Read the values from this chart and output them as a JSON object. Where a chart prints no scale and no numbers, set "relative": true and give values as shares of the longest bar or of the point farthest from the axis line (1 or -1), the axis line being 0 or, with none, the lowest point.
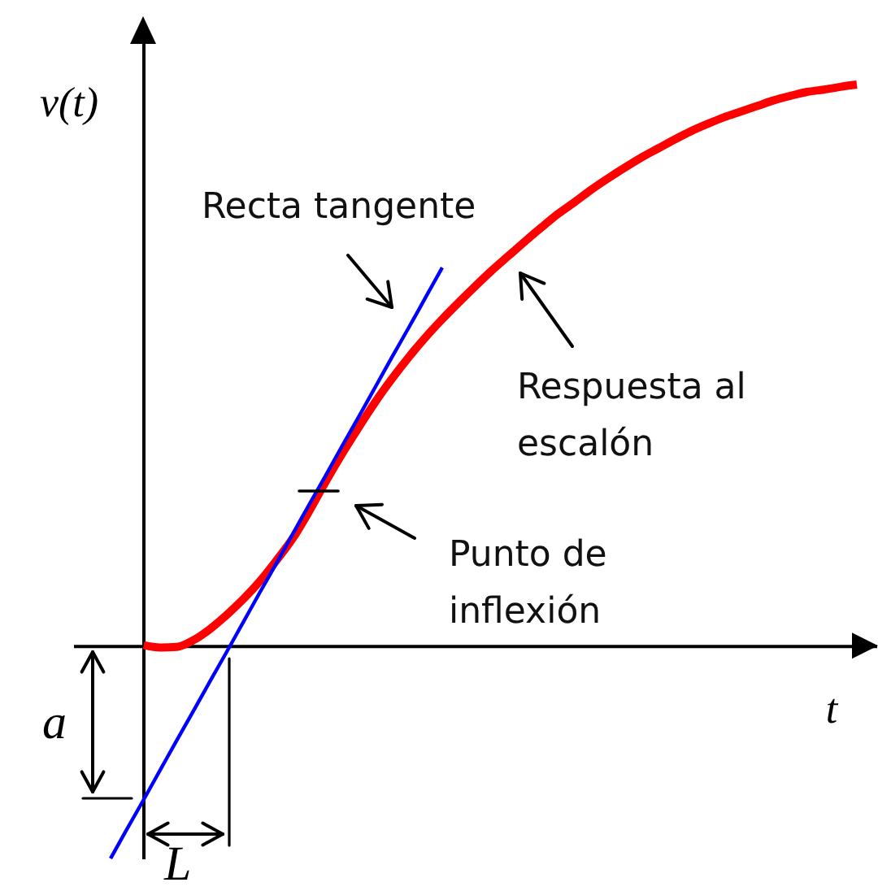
{
  "chart_data": {
    "type": "line",
    "relative": true,
    "xlabel": "t",
    "ylabel": "v(t)",
    "categories": [
      null,
      null,
      null,
      null,
      null,
      null,
      null,
      null,
      null,
      null,
      null,
      null,
      null,
      null,
      null,
      null,
      null,
      null,
      null,
      null,
      null,
      null,
      null,
      null,
      null,
      null,
      null,
      null,
      null,
      null,
      null,
      null,
      null,
      null,
      null,
      null,
      null,
      null,
      null,
      null,
      null,
      null,
      null,
      null,
      null,
      null
    ],
    "series": [
      {
        "name": "Respuesta al escalón",
        "color": "#ff0000",
        "values": [
          null,
          null,
          0.001,
          -0.003,
          -0.002,
          0.01,
          0.03,
          0.055,
          0.083,
          0.115,
          0.152,
          0.192,
          0.241,
          0.294,
          0.344,
          0.391,
          0.436,
          0.477,
          0.515,
          0.55,
          0.582,
          0.612,
          0.641,
          0.669,
          0.695,
          0.721,
          0.746,
          0.77,
          0.791,
          0.813,
          0.833,
          0.852,
          0.87,
          0.886,
          0.902,
          0.917,
          0.93,
          0.942,
          0.952,
          0.962,
          0.972,
          0.98,
          0.987,
          0.991,
          0.996,
          1.0
        ]
      },
      {
        "name": "Recta tangente",
        "color": "#0000ff",
        "values": [
          -0.379,
          -0.326,
          -0.274,
          -0.221,
          -0.168,
          -0.116,
          -0.063,
          -0.011,
          0.042,
          0.095,
          0.147,
          0.2,
          0.253,
          0.305,
          0.358,
          0.41,
          0.463,
          0.516,
          0.568,
          0.621,
          0.674,
          null,
          null,
          null,
          null,
          null,
          null,
          null,
          null,
          null,
          null,
          null,
          null,
          null,
          null,
          null,
          null,
          null,
          null,
          null,
          null,
          null,
          null,
          null,
          null,
          null
        ]
      }
    ],
    "annotations": [
      "Punto de inflexión",
      "a",
      "L"
    ]
  }
}
